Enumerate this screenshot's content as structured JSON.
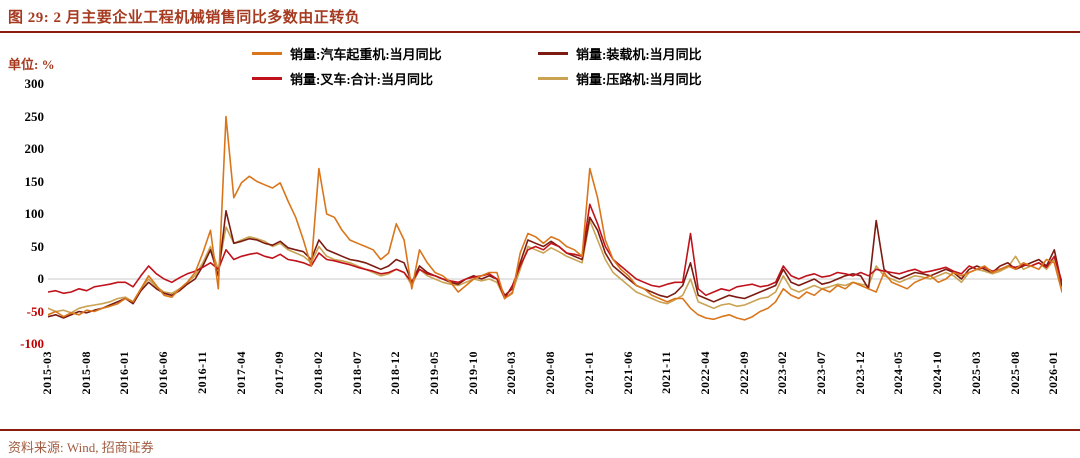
{
  "header": {
    "title": "图 29:  2 月主要企业工程机械销售同比多数由正转负"
  },
  "footer": {
    "source": "资料来源:  Wind, 招商证券"
  },
  "chart": {
    "unit_label": "单位: %"
  },
  "colors": {
    "title": "#A53A20",
    "unit": "#A53A20",
    "rule": "#8B1D10",
    "source": "#A05B3F",
    "tick_positive": "#000000",
    "tick_negative": "#C00000",
    "zero_line": "#C8C8C8",
    "legend_text": "#000000"
  },
  "chart_data": {
    "type": "line",
    "title": "2 月主要企业工程机械销售同比多数由正转负",
    "ylabel": "单位: %",
    "ylim": [
      -100,
      300
    ],
    "y_ticks": [
      300,
      250,
      200,
      150,
      100,
      50,
      0,
      -50,
      -100
    ],
    "grid": false,
    "legend_position": "top",
    "x_tick_step_months": 5,
    "x_tick_labels": [
      "2015-03",
      "2015-08",
      "2016-01",
      "2016-06",
      "2016-11",
      "2017-04",
      "2017-09",
      "2018-02",
      "2018-07",
      "2018-12",
      "2019-05",
      "2019-10",
      "2020-03",
      "2020-08",
      "2021-01",
      "2021-06",
      "2021-11",
      "2022-04",
      "2022-09",
      "2023-02",
      "2023-07",
      "2023-12",
      "2024-05",
      "2024-10",
      "2025-03",
      "2025-08",
      "2026-01"
    ],
    "x_range": [
      "2015-03",
      "2026-02"
    ],
    "series": [
      {
        "name": "销量:汽车起重机:当月同比",
        "color": "#D9761C",
        "values": [
          -55,
          -50,
          -58,
          -52,
          -55,
          -48,
          -50,
          -45,
          -42,
          -38,
          -30,
          -35,
          -15,
          5,
          -10,
          -25,
          -28,
          -15,
          -5,
          10,
          40,
          75,
          -15,
          250,
          125,
          148,
          158,
          150,
          145,
          140,
          148,
          120,
          95,
          60,
          20,
          170,
          100,
          95,
          75,
          60,
          55,
          50,
          45,
          30,
          40,
          85,
          60,
          -15,
          45,
          25,
          10,
          5,
          -5,
          -20,
          -10,
          0,
          5,
          10,
          10,
          -30,
          -22,
          40,
          70,
          65,
          55,
          65,
          60,
          50,
          45,
          35,
          170,
          125,
          60,
          30,
          15,
          5,
          -10,
          -15,
          -25,
          -30,
          -35,
          -30,
          -30,
          -45,
          -55,
          -60,
          -62,
          -58,
          -55,
          -60,
          -63,
          -58,
          -50,
          -45,
          -35,
          -15,
          -25,
          -30,
          -20,
          -25,
          -15,
          -20,
          -10,
          -15,
          -5,
          -10,
          -15,
          -20,
          10,
          -5,
          -10,
          -15,
          -5,
          0,
          5,
          -5,
          0,
          10,
          5,
          10,
          15,
          20,
          10,
          15,
          20,
          15,
          25,
          20,
          15,
          30,
          25,
          -20
        ]
      },
      {
        "name": "销量:装载机:当月同比",
        "color": "#7C1B11",
        "values": [
          -58,
          -55,
          -60,
          -55,
          -50,
          -52,
          -48,
          -45,
          -40,
          -35,
          -30,
          -38,
          -18,
          -5,
          -15,
          -22,
          -25,
          -18,
          -8,
          0,
          20,
          45,
          5,
          105,
          55,
          58,
          62,
          60,
          55,
          52,
          58,
          48,
          45,
          42,
          30,
          60,
          45,
          40,
          35,
          30,
          28,
          25,
          20,
          15,
          20,
          30,
          25,
          -5,
          20,
          10,
          5,
          0,
          -5,
          -8,
          0,
          5,
          0,
          5,
          0,
          -25,
          -15,
          25,
          60,
          55,
          50,
          58,
          50,
          40,
          35,
          30,
          95,
          75,
          40,
          20,
          10,
          0,
          -10,
          -15,
          -20,
          -25,
          -28,
          -22,
          -10,
          25,
          -25,
          -30,
          -35,
          -30,
          -25,
          -28,
          -30,
          -25,
          -20,
          -15,
          -10,
          15,
          -5,
          -10,
          -5,
          0,
          -8,
          -5,
          0,
          5,
          8,
          5,
          -15,
          90,
          15,
          5,
          0,
          5,
          10,
          8,
          5,
          10,
          15,
          10,
          0,
          15,
          20,
          15,
          10,
          20,
          25,
          15,
          20,
          25,
          30,
          20,
          45,
          -10
        ]
      },
      {
        "name": "销量:叉车:合计:当月同比",
        "color": "#C0121B",
        "values": [
          -20,
          -18,
          -22,
          -20,
          -15,
          -18,
          -12,
          -10,
          -8,
          -5,
          -5,
          -12,
          5,
          20,
          8,
          0,
          -5,
          2,
          8,
          12,
          18,
          25,
          15,
          45,
          30,
          35,
          38,
          40,
          35,
          32,
          38,
          30,
          28,
          25,
          20,
          40,
          30,
          28,
          25,
          22,
          18,
          15,
          12,
          8,
          10,
          15,
          10,
          -5,
          15,
          8,
          5,
          0,
          -3,
          -5,
          0,
          3,
          5,
          8,
          0,
          -30,
          -10,
          20,
          45,
          50,
          45,
          55,
          50,
          40,
          38,
          35,
          115,
          85,
          50,
          30,
          20,
          10,
          0,
          -5,
          -10,
          -12,
          -8,
          -5,
          -5,
          70,
          -15,
          -25,
          -20,
          -15,
          -18,
          -12,
          -10,
          -8,
          -12,
          -10,
          -5,
          20,
          5,
          0,
          5,
          8,
          3,
          5,
          10,
          8,
          5,
          10,
          5,
          15,
          12,
          10,
          8,
          12,
          15,
          10,
          12,
          15,
          18,
          12,
          8,
          20,
          15,
          18,
          12,
          15,
          20,
          18,
          22,
          20,
          25,
          18,
          35,
          -5
        ]
      },
      {
        "name": "销量:压路机:当月同比",
        "color": "#C9A353",
        "values": [
          -45,
          -50,
          -48,
          -52,
          -45,
          -42,
          -40,
          -38,
          -35,
          -30,
          -28,
          -35,
          -15,
          0,
          -12,
          -20,
          -22,
          -15,
          -5,
          5,
          25,
          50,
          15,
          80,
          55,
          60,
          65,
          62,
          58,
          50,
          55,
          45,
          40,
          35,
          25,
          50,
          35,
          30,
          28,
          25,
          20,
          15,
          10,
          5,
          8,
          15,
          10,
          -10,
          15,
          5,
          0,
          -5,
          -8,
          -10,
          -5,
          0,
          -3,
          0,
          -5,
          -30,
          -20,
          15,
          50,
          45,
          40,
          48,
          42,
          35,
          30,
          25,
          90,
          60,
          30,
          10,
          0,
          -10,
          -20,
          -25,
          -30,
          -35,
          -38,
          -32,
          -25,
          0,
          -35,
          -40,
          -45,
          -40,
          -38,
          -42,
          -40,
          -35,
          -30,
          -28,
          -20,
          5,
          -15,
          -20,
          -15,
          -10,
          -15,
          -12,
          -8,
          -10,
          -5,
          -8,
          -10,
          20,
          5,
          0,
          -5,
          0,
          5,
          3,
          0,
          5,
          10,
          5,
          -5,
          10,
          15,
          12,
          8,
          12,
          18,
          35,
          15,
          20,
          25,
          15,
          30,
          -15
        ]
      }
    ]
  }
}
